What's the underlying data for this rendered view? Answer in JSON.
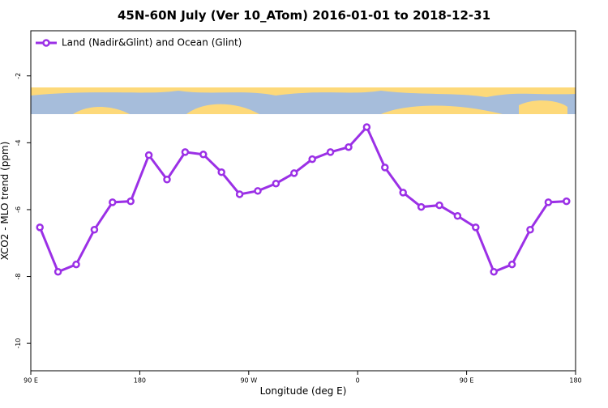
{
  "chart_data": {
    "type": "line",
    "title": "45N-60N July (Ver 10_ATom)   2016-01-01 to 2018-12-31",
    "x_label": "Longitude (deg E)",
    "y_label": "XCO2 - MLO trend (ppm)",
    "x": [
      97.5,
      112.5,
      127.5,
      142.5,
      157.5,
      172.5,
      187.5,
      202.5,
      217.5,
      232.5,
      247.5,
      262.5,
      277.5,
      292.5,
      307.5,
      322.5,
      337.5,
      352.5,
      367.5,
      382.5,
      397.5,
      412.5,
      427.5,
      442.5,
      457.5,
      472.5,
      487.5,
      502.5,
      517.5,
      532.5
    ],
    "series": [
      {
        "name": "Land (Nadir&Glint) and Ocean (Glint)",
        "color": "#9b30e6",
        "values": [
          -6.53,
          -7.86,
          -7.64,
          -6.6,
          -5.78,
          -5.75,
          -4.37,
          -5.1,
          -4.28,
          -4.35,
          -4.88,
          -5.54,
          -5.44,
          -5.22,
          -4.91,
          -4.49,
          -4.28,
          -4.13,
          -3.53,
          -4.74,
          -5.49,
          -5.92,
          -5.87,
          -6.19,
          -6.53,
          -7.86,
          -7.64,
          -6.6,
          -5.78,
          -5.75
        ]
      }
    ],
    "xlim": [
      90,
      540
    ],
    "xticks": [
      {
        "value": 90,
        "label": "90 E"
      },
      180,
      {
        "value": 270,
        "label": "90 W"
      },
      {
        "value": 360,
        "label": "0"
      },
      {
        "value": 450,
        "label": "90 E"
      },
      {
        "value": 540,
        "label": "180"
      }
    ],
    "ylim": [
      -10.82,
      -0.65
    ],
    "yticks": [
      -10,
      -8,
      -6,
      -4,
      -2
    ],
    "legend_position": "top-left"
  }
}
